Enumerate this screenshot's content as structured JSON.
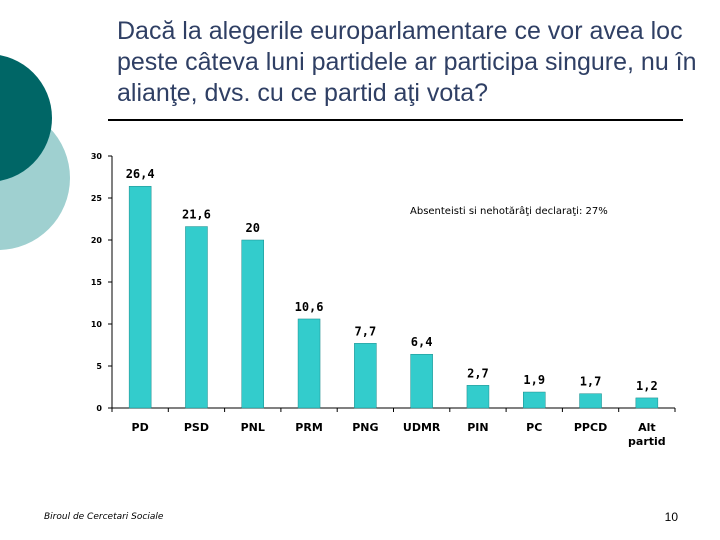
{
  "slide": {
    "title": "Dacă la alegerile europarlamentare ce vor avea loc peste câteva luni partidele ar participa singure, nu în alianţe, dvs. cu ce partid aţi vota?",
    "footer": "Biroul de Cercetari Sociale",
    "page_number": "10",
    "colors": {
      "title": "#2f3f64",
      "decor_dark": "#006666",
      "decor_light": "#9fd0d0"
    }
  },
  "chart_data": {
    "type": "bar",
    "categories": [
      "PD",
      "PSD",
      "PNL",
      "PRM",
      "PNG",
      "UDMR",
      "PIN",
      "PC",
      "PPCD",
      "Alt partid"
    ],
    "values": [
      26.4,
      21.6,
      20,
      10.6,
      7.7,
      6.4,
      2.7,
      1.9,
      1.7,
      1.2
    ],
    "value_labels": [
      "26,4",
      "21,6",
      "20",
      "10,6",
      "7,7",
      "6,4",
      "2,7",
      "1,9",
      "1,7",
      "1,2"
    ],
    "annotation": "Absenteisti si nehotărâţi declaraţi: 27%",
    "yticks": [
      0,
      5,
      10,
      15,
      20,
      25,
      30
    ],
    "ylim": [
      0,
      30
    ],
    "grid": false,
    "bar_color": "#33cccc"
  }
}
